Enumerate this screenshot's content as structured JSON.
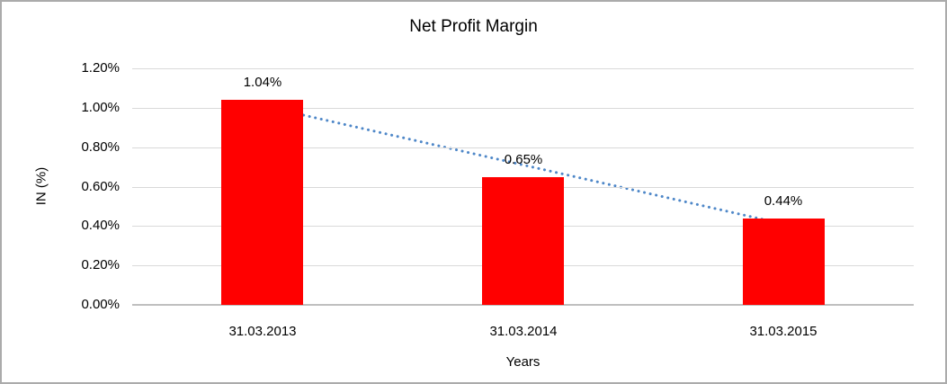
{
  "frame": {
    "background": "#FFFFFF",
    "border_color": "#ABABAB"
  },
  "chart_data": {
    "type": "bar",
    "title": "Net Profit Margin",
    "xlabel": "Years",
    "ylabel": "IN (%)",
    "categories": [
      "31.03.2013",
      "31.03.2014",
      "31.03.2015"
    ],
    "series": [
      {
        "name": "Net Profit Margin",
        "values": [
          1.04,
          0.65,
          0.44
        ]
      }
    ],
    "value_labels": [
      "1.04%",
      "0.65%",
      "0.44%"
    ],
    "bar_color": "#FF0000",
    "ylim": [
      0,
      1.2
    ],
    "yticks": [
      0,
      0.2,
      0.4,
      0.6,
      0.8,
      1.0,
      1.2
    ],
    "ytick_labels": [
      "0.00%",
      "0.20%",
      "0.40%",
      "0.60%",
      "0.80%",
      "1.00%",
      "1.20%"
    ],
    "grid": "horizontal",
    "gridline_color": "#D9D9D9",
    "axis_line_color": "#BFBFBF",
    "text_color": "#000000",
    "legend": "none",
    "trendline": {
      "type": "linear",
      "style": "dotted",
      "color": "#4E87C8",
      "start_value": 1.01,
      "end_value": 0.41
    }
  }
}
